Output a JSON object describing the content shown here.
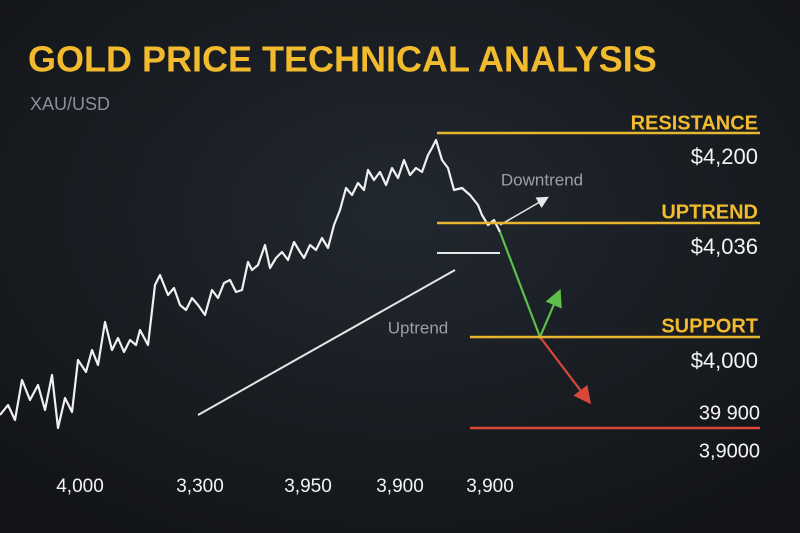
{
  "header": {
    "title": "GOLD PRICE TECHNICAL ANALYSIS",
    "subtitle": "XAU/USD"
  },
  "annotations": {
    "downtrend": "Downtrend",
    "uptrend": "Uptrend"
  },
  "levels": [
    {
      "label": "RESISTANCE",
      "price": "$4,200"
    },
    {
      "label": "UPTREND",
      "price": "$4,036"
    },
    {
      "label": "SUPPORT",
      "price": "$4,000"
    },
    {
      "label": "39 900",
      "price": "3,9000"
    }
  ],
  "x_labels": [
    "4,000",
    "3,300",
    "3,950",
    "3,900",
    "3,900"
  ]
}
